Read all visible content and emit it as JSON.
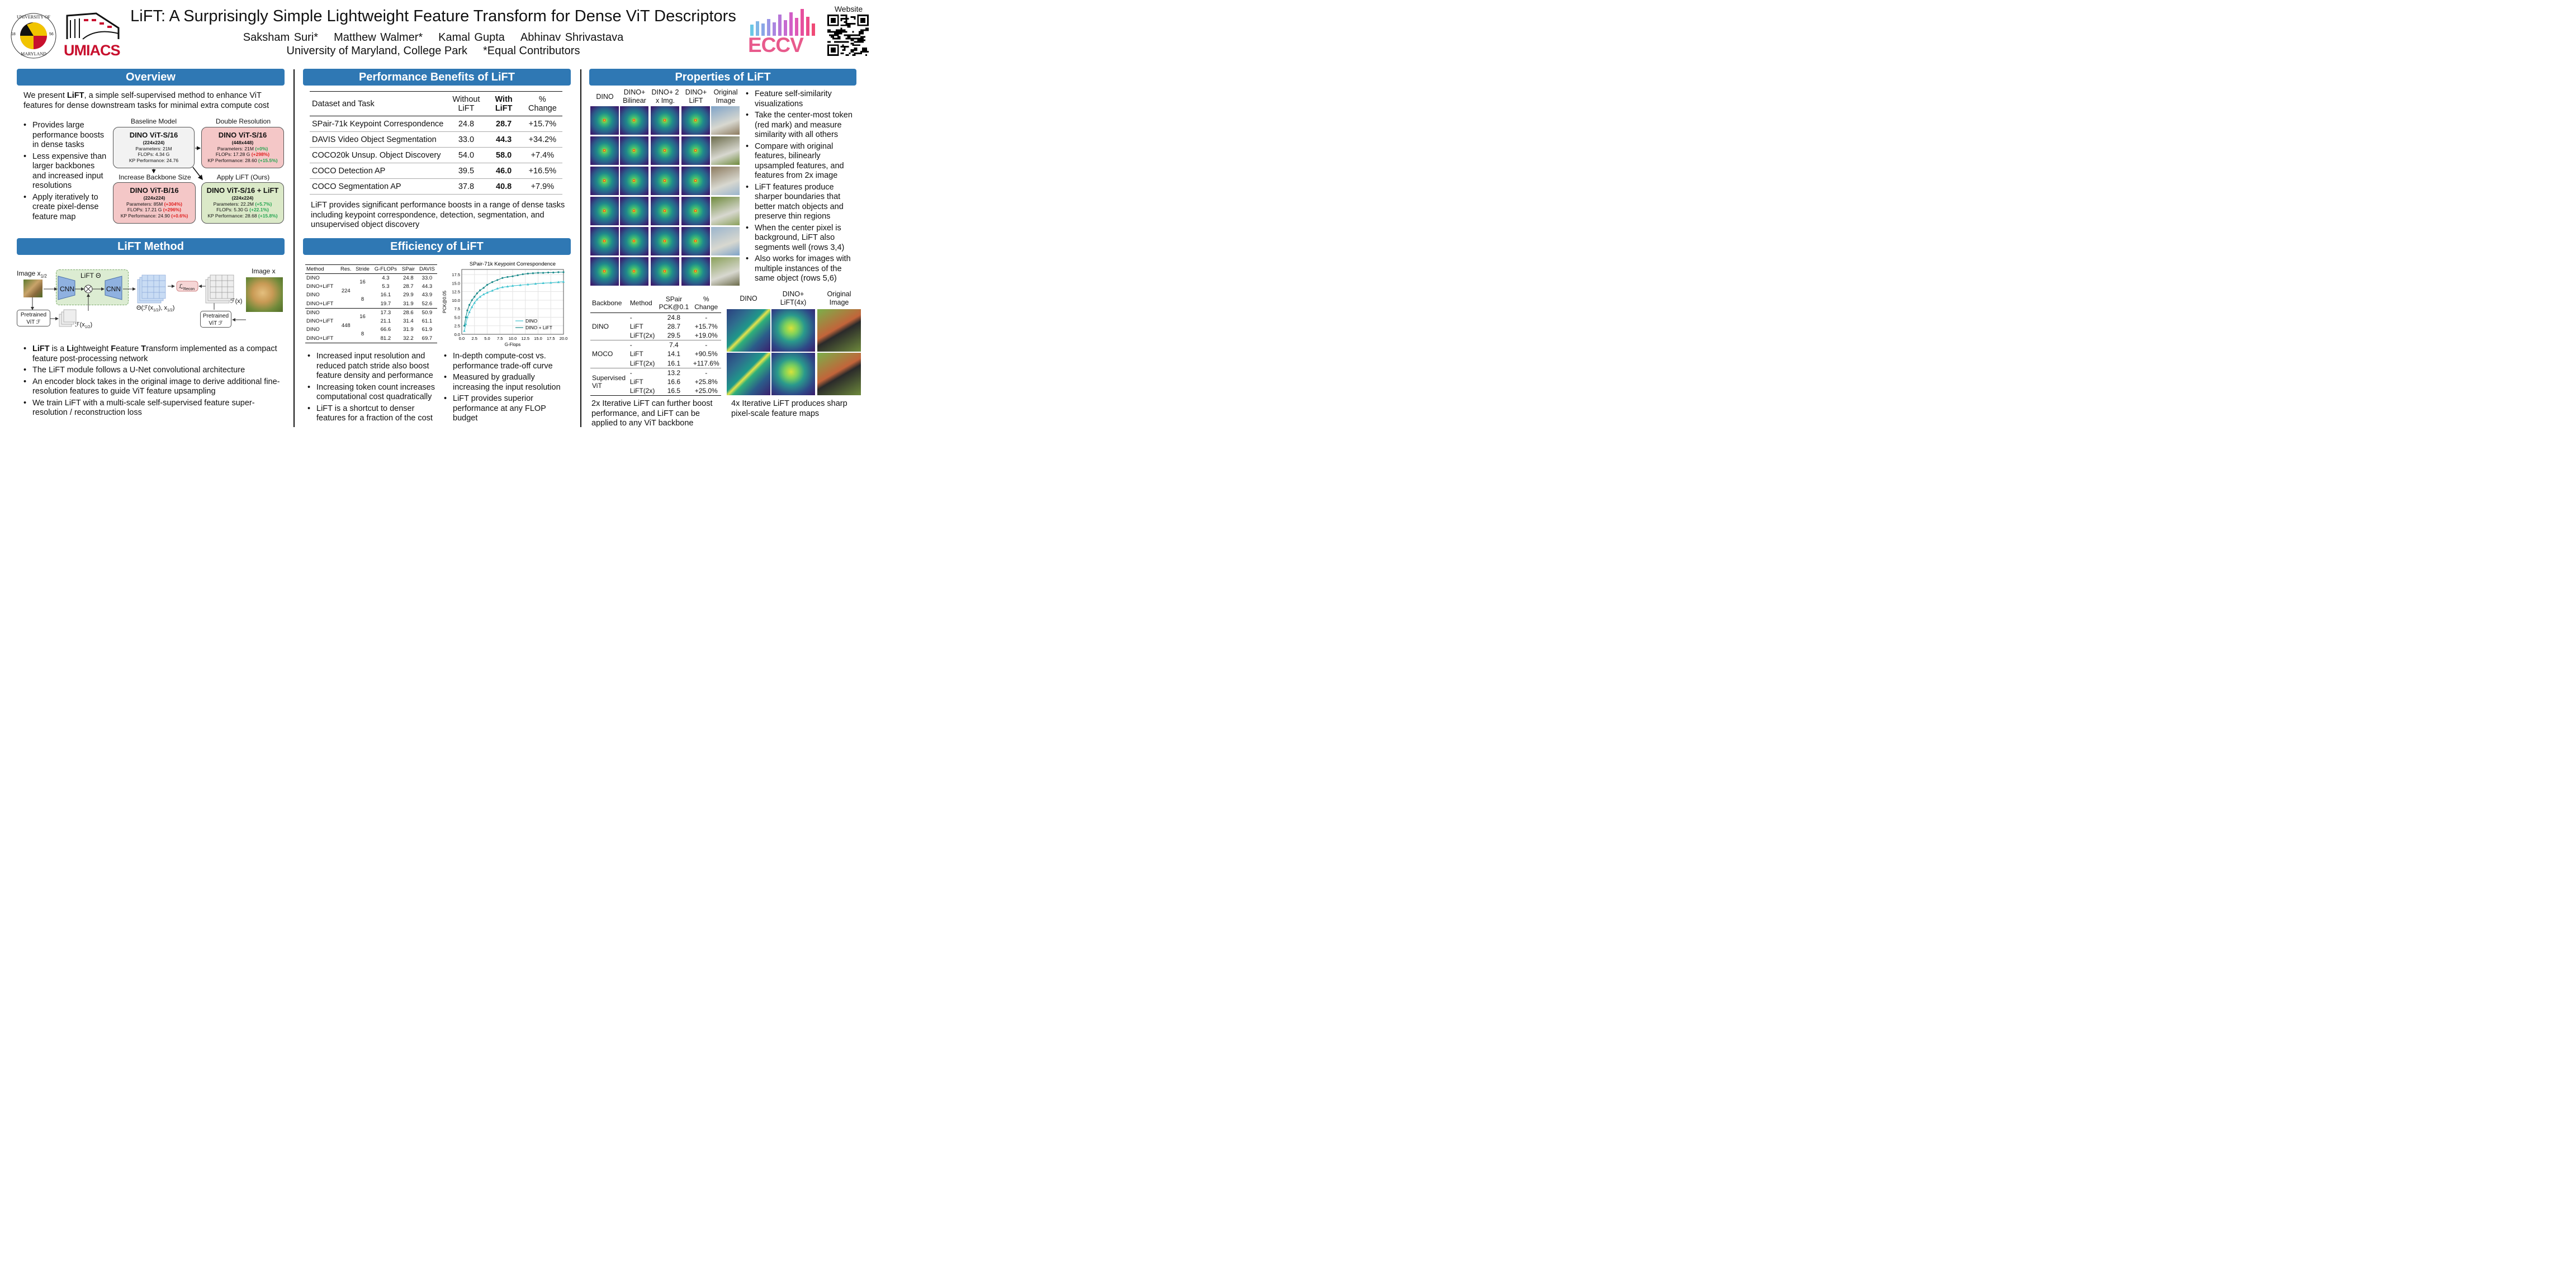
{
  "header": {
    "title": "LiFT: A Surprisingly Simple Lightweight Feature Transform for Dense ViT Descriptors",
    "authors": [
      "Saksham Suri*",
      "Matthew Walmer*",
      "Kamal Gupta",
      "Abhinav Shrivastava"
    ],
    "affiliation": "University of Maryland, College Park",
    "note": "*Equal Contributors",
    "website_label": "Website",
    "umd_logo": {
      "top": "UNIVERSITY OF",
      "bottom": "MARYLAND",
      "left": "18",
      "right": "56"
    },
    "umiacs_label": "UMIACS",
    "eccv_label": "ECCV"
  },
  "overview": {
    "heading": "Overview",
    "intro_pre": "We present ",
    "intro_bold": "LiFT",
    "intro_post": ", a simple self-supervised method to enhance ViT features for dense downstream tasks for minimal extra compute cost",
    "bullets": [
      "Provides large performance boosts in dense tasks",
      "Less expensive than larger backbones and increased input resolutions",
      "Apply iteratively to create pixel-dense feature map"
    ],
    "baseline": {
      "caption": "Baseline Model",
      "name": "DINO ViT-S/16",
      "res": "(224x224)",
      "l1": "Parameters: 21M",
      "l2": "FLOPs: 4.34 G",
      "l3": "KP Performance: 24.76"
    },
    "double": {
      "caption": "Double Resolution",
      "name": "DINO ViT-S/16",
      "res": "(448x448)",
      "l1": "Parameters: 21M ",
      "d1": "(+0%)",
      "l2": "FLOPs: 17.28 G ",
      "d2": "(+298%)",
      "l3": "KP Performance: 28.60 ",
      "d3": "(+15.5%)"
    },
    "backbone": {
      "caption": "Increase Backbone Size",
      "name": "DINO ViT-B/16",
      "res": "(224x224)",
      "l1": "Parameters: 85M ",
      "d1": "(+304%)",
      "l2": "FLOPs: 17.21 G ",
      "d2": "(+296%)",
      "l3": "KP Performance: 24.90 ",
      "d3": "(+0.6%)"
    },
    "apply": {
      "caption": "Apply LiFT (Ours)",
      "name": "DINO ViT-S/16 + LiFT",
      "res": "(224x224)",
      "l1": "Parameters: 22.2M ",
      "d1": "(+5.7%)",
      "l2": "FLOPs: 5.30 G ",
      "d2": "(+22.1%)",
      "l3": "KP Performance: 28.68 ",
      "d3": "(+15.8%)"
    },
    "colors": {
      "baseline": "#f2f2f2",
      "red_box": "#f4c7c7",
      "green_box": "#dbe9c8",
      "header": "#2f78b4"
    }
  },
  "method": {
    "heading": "LiFT Method",
    "image_half": "Image x",
    "half_sub": "1/2",
    "image_full": "Image x",
    "lift_label": "LiFT Θ",
    "cnn1": "CNN",
    "cnn2": "CNN",
    "pretrained": "Pretrained",
    "vit_f": "ViT ℱ",
    "feat_half": "ℱ(x",
    "feat_half_sub": "1/2",
    "feat_half_end": ")",
    "theta_expr": "Θ(ℱ(x",
    "theta_sub": "1/2",
    "theta_mid": "), x",
    "theta_end": ")",
    "feat_full": "ℱ(x)",
    "loss": "ℒ",
    "loss_sub": "Recon",
    "bullets": [
      {
        "parts": [
          "",
          "LiFT",
          " is a ",
          "Li",
          "ghtweight ",
          "F",
          "eature ",
          "T",
          "ransform implemented as a compact feature post-processing network"
        ]
      },
      {
        "text": "The LiFT module follows a U-Net convolutional architecture"
      },
      {
        "text": "An encoder block takes in the original image to derive additional fine-resolution features to guide ViT feature upsampling"
      },
      {
        "text": "We train LiFT with a multi-scale self-supervised feature super-resolution / reconstruction loss"
      }
    ]
  },
  "performance": {
    "heading": "Performance Benefits of LiFT",
    "columns": [
      "Dataset and Task",
      "Without LiFT",
      "With LiFT",
      "% Change"
    ],
    "rows": [
      [
        "SPair-71k Keypoint Correspondence",
        "24.8",
        "28.7",
        "+15.7%"
      ],
      [
        "DAVIS Video Object Segmentation",
        "33.0",
        "44.3",
        "+34.2%"
      ],
      [
        "COCO20k Unsup. Object Discovery",
        "54.0",
        "58.0",
        "+7.4%"
      ],
      [
        "COCO Detection AP",
        "39.5",
        "46.0",
        "+16.5%"
      ],
      [
        "COCO Segmentation AP",
        "37.8",
        "40.8",
        "+7.9%"
      ]
    ],
    "summary": "LiFT provides significant performance boosts in a range of dense tasks including keypoint correspondence, detection, segmentation, and unsupervised object discovery"
  },
  "efficiency": {
    "heading": "Efficiency of LiFT",
    "columns": [
      "Method",
      "Res.",
      "Stride",
      "G-FLOPs",
      "SPair",
      "DAVIS"
    ],
    "rows": [
      [
        "DINO",
        "4.3",
        "24.8",
        "33.0"
      ],
      [
        "DINO+LiFT",
        "5.3",
        "28.7",
        "44.3"
      ],
      [
        "DINO",
        "16.1",
        "29.9",
        "43.9"
      ],
      [
        "DINO+LiFT",
        "19.7",
        "31.9",
        "52.6"
      ],
      [
        "DINO",
        "17.3",
        "28.6",
        "50.9"
      ],
      [
        "DINO+LiFT",
        "21.1",
        "31.4",
        "61.1"
      ],
      [
        "DINO",
        "66.6",
        "31.9",
        "61.9"
      ],
      [
        "DINO+LiFT",
        "81.2",
        "32.2",
        "69.7"
      ]
    ],
    "res_groups": [
      "224",
      "448"
    ],
    "stride_groups": [
      "16",
      "8",
      "16",
      "8"
    ],
    "bullets_left": [
      "Increased input resolution and reduced patch stride also boost feature density and performance",
      "Increasing token count increases computational cost quadratically",
      "LiFT is a shortcut to denser features for a fraction of the cost"
    ],
    "bullets_right": [
      "In-depth compute-cost vs. performance trade-off curve",
      "Measured by gradually increasing the input resolution",
      "LiFT provides superior performance at any FLOP budget"
    ]
  },
  "chart_data": {
    "type": "line",
    "title": "SPair-71k Keypoint Correspondence",
    "xlabel": "G-Flops",
    "ylabel": "PCK@0.05",
    "xlim": [
      0,
      20
    ],
    "ylim": [
      0,
      19
    ],
    "xticks": [
      "0.0",
      "2.5",
      "5.0",
      "7.5",
      "10.0",
      "12.5",
      "15.0",
      "17.5",
      "20.0"
    ],
    "yticks": [
      "0.0",
      "2.5",
      "5.0",
      "7.5",
      "10.0",
      "12.5",
      "15.0",
      "17.5"
    ],
    "grid": true,
    "legend": "bottom-right",
    "series": [
      {
        "name": "DINO",
        "color": "#3fc4d0",
        "marker": "triangle",
        "x": [
          0.5,
          0.8,
          1.1,
          1.5,
          2.0,
          2.5,
          3.0,
          3.6,
          4.3,
          5.0,
          6.0,
          7.0,
          8.0,
          9.0,
          10.0,
          11.5,
          13.0,
          14.5,
          16.0,
          17.5,
          19.0,
          20.0
        ],
        "y": [
          1.0,
          3.0,
          5.0,
          6.5,
          8.0,
          9.2,
          10.2,
          11.0,
          11.7,
          12.2,
          12.8,
          13.4,
          13.8,
          14.0,
          14.2,
          14.4,
          14.6,
          14.8,
          15.0,
          15.1,
          15.3,
          15.4
        ]
      },
      {
        "name": "DINO + LiFT",
        "color": "#1a8a8a",
        "marker": "star",
        "x": [
          0.5,
          0.8,
          1.1,
          1.5,
          2.0,
          2.5,
          3.0,
          3.6,
          4.3,
          5.0,
          6.0,
          7.0,
          8.0,
          9.0,
          10.0,
          11.0,
          12.0,
          13.0,
          14.0,
          15.0,
          16.0,
          17.0,
          18.0,
          19.0,
          20.0
        ],
        "y": [
          2.5,
          5.0,
          7.0,
          8.6,
          10.0,
          11.0,
          12.0,
          12.9,
          13.6,
          14.5,
          15.3,
          15.9,
          16.5,
          16.8,
          17.0,
          17.3,
          17.6,
          17.8,
          17.9,
          18.0,
          18.0,
          18.1,
          18.1,
          18.2,
          18.2
        ]
      }
    ]
  },
  "properties": {
    "heading": "Properties of LiFT",
    "col_headers": [
      "DINO",
      "DINO+ Bilinear",
      "DINO+ 2 x Img.",
      "DINO+ LiFT",
      "Original Image"
    ],
    "bullets": [
      "Feature self-similarity visualizations",
      "Take the center-most token (red mark) and measure similarity with all others",
      "Compare with original features, bilinearly upsampled features, and features from 2x image",
      "LiFT features produce sharper boundaries that better match objects and preserve thin regions",
      "When the center pixel is background, LiFT also segments well (rows 3,4)",
      "Also works for images with multiple instances of the same object (rows 5,6)"
    ],
    "backbone_table": {
      "columns": [
        "Backbone",
        "Method",
        "SPair PCK@0.1",
        "% Change"
      ],
      "rows": [
        [
          "DINO",
          "-",
          "24.8",
          "-"
        ],
        [
          "",
          "LiFT",
          "28.7",
          "+15.7%"
        ],
        [
          "",
          "LiFT(2x)",
          "29.5",
          "+19.0%"
        ],
        [
          "MOCO",
          "-",
          "7.4",
          "-"
        ],
        [
          "",
          "LiFT",
          "14.1",
          "+90.5%"
        ],
        [
          "",
          "LiFT(2x)",
          "16.1",
          "+117.6%"
        ],
        [
          "Supervised ViT",
          "-",
          "13.2",
          "-"
        ],
        [
          "",
          "LiFT",
          "16.6",
          "+25.8%"
        ],
        [
          "",
          "LiFT(2x)",
          "16.5",
          "+25.0%"
        ]
      ]
    },
    "backbone_caption": "2x Iterative LiFT can further boost performance, and LiFT can be applied to any ViT backbone",
    "sharp_headers": [
      "DINO",
      "DINO+ LiFT(4x)",
      "Original Image"
    ],
    "sharp_caption": "4x Iterative LiFT produces sharp pixel-scale feature maps"
  }
}
